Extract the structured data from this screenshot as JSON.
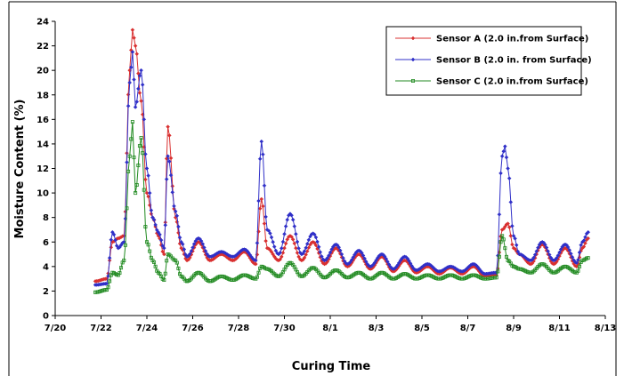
{
  "chart_data": {
    "type": "line",
    "xlabel": "Curing Time",
    "ylabel": "Moisture Content (%)",
    "xlim": [
      "7/20",
      "8/13"
    ],
    "ylim": [
      0,
      24
    ],
    "x_tick_labels": [
      "7/20",
      "7/22",
      "7/24",
      "7/26",
      "7/28",
      "7/30",
      "8/1",
      "8/3",
      "8/5",
      "8/7",
      "8/9",
      "8/11",
      "8/13"
    ],
    "y_ticks": [
      0,
      2,
      4,
      6,
      8,
      10,
      12,
      14,
      16,
      18,
      20,
      22,
      24
    ],
    "grid": false,
    "legend_position": "top-right",
    "series": [
      {
        "name": "Sensor A (2.0 in.from Surface)",
        "color": "#d93030",
        "marker": "diamond",
        "points": [
          [
            "7/21 18:00",
            2.8
          ],
          [
            "7/22 06:00",
            3.0
          ],
          [
            "7/22 12:00",
            6.0
          ],
          [
            "7/22 18:00",
            6.3
          ],
          [
            "7/23 00:00",
            6.5
          ],
          [
            "7/23 06:00",
            20.0
          ],
          [
            "7/23 09:00",
            23.3
          ],
          [
            "7/23 12:00",
            22.0
          ],
          [
            "7/23 18:00",
            17.5
          ],
          [
            "7/24 00:00",
            10.0
          ],
          [
            "7/24 06:00",
            8.0
          ],
          [
            "7/24 12:00",
            6.5
          ],
          [
            "7/24 18:00",
            5.0
          ],
          [
            "7/24 22:00",
            15.4
          ],
          [
            "7/25 06:00",
            8.0
          ],
          [
            "7/25 12:00",
            5.5
          ],
          [
            "7/25 18:00",
            4.5
          ],
          [
            "7/26 06:00",
            6.0
          ],
          [
            "7/26 18:00",
            4.5
          ],
          [
            "7/27 06:00",
            5.0
          ],
          [
            "7/27 18:00",
            4.5
          ],
          [
            "7/28 06:00",
            5.2
          ],
          [
            "7/28 18:00",
            4.2
          ],
          [
            "7/29 00:00",
            9.5
          ],
          [
            "7/29 06:00",
            5.5
          ],
          [
            "7/29 18:00",
            4.5
          ],
          [
            "7/30 06:00",
            6.5
          ],
          [
            "7/30 18:00",
            4.5
          ],
          [
            "7/31 06:00",
            6.0
          ],
          [
            "7/31 18:00",
            4.2
          ],
          [
            "8/1 06:00",
            5.5
          ],
          [
            "8/1 18:00",
            4.0
          ],
          [
            "8/2 06:00",
            5.0
          ],
          [
            "8/2 18:00",
            3.8
          ],
          [
            "8/3 06:00",
            4.8
          ],
          [
            "8/3 18:00",
            3.6
          ],
          [
            "8/4 06:00",
            4.5
          ],
          [
            "8/4 18:00",
            3.5
          ],
          [
            "8/5 06:00",
            4.0
          ],
          [
            "8/5 18:00",
            3.4
          ],
          [
            "8/6 06:00",
            3.9
          ],
          [
            "8/6 18:00",
            3.4
          ],
          [
            "8/7 06:00",
            4.0
          ],
          [
            "8/7 18:00",
            3.2
          ],
          [
            "8/8 06:00",
            3.3
          ],
          [
            "8/8 12:00",
            7.0
          ],
          [
            "8/8 18:00",
            7.5
          ],
          [
            "8/9 00:00",
            5.5
          ],
          [
            "8/9 06:00",
            5.0
          ],
          [
            "8/9 18:00",
            4.2
          ],
          [
            "8/10 06:00",
            5.8
          ],
          [
            "8/10 18:00",
            4.2
          ],
          [
            "8/11 06:00",
            5.5
          ],
          [
            "8/11 18:00",
            4.0
          ],
          [
            "8/12 00:00",
            5.5
          ],
          [
            "8/12 06:00",
            6.3
          ]
        ]
      },
      {
        "name": "Sensor B (2.0 in. from Surface)",
        "color": "#3030c8",
        "marker": "diamond",
        "points": [
          [
            "7/21 18:00",
            2.5
          ],
          [
            "7/22 06:00",
            2.6
          ],
          [
            "7/22 12:00",
            6.8
          ],
          [
            "7/22 18:00",
            5.5
          ],
          [
            "7/23 00:00",
            6.0
          ],
          [
            "7/23 06:00",
            19.0
          ],
          [
            "7/23 09:00",
            21.5
          ],
          [
            "7/23 12:00",
            17.0
          ],
          [
            "7/23 18:00",
            20.0
          ],
          [
            "7/24 00:00",
            12.0
          ],
          [
            "7/24 06:00",
            8.0
          ],
          [
            "7/24 12:00",
            6.8
          ],
          [
            "7/24 18:00",
            5.5
          ],
          [
            "7/24 22:00",
            13.0
          ],
          [
            "7/25 06:00",
            8.5
          ],
          [
            "7/25 12:00",
            6.0
          ],
          [
            "7/25 18:00",
            4.8
          ],
          [
            "7/26 06:00",
            6.3
          ],
          [
            "7/26 18:00",
            4.8
          ],
          [
            "7/27 06:00",
            5.2
          ],
          [
            "7/27 18:00",
            4.8
          ],
          [
            "7/28 06:00",
            5.4
          ],
          [
            "7/28 18:00",
            4.5
          ],
          [
            "7/29 00:00",
            14.2
          ],
          [
            "7/29 06:00",
            7.0
          ],
          [
            "7/29 18:00",
            5.0
          ],
          [
            "7/30 06:00",
            8.3
          ],
          [
            "7/30 18:00",
            5.0
          ],
          [
            "7/31 06:00",
            6.7
          ],
          [
            "7/31 18:00",
            4.5
          ],
          [
            "8/1 06:00",
            5.8
          ],
          [
            "8/1 18:00",
            4.2
          ],
          [
            "8/2 06:00",
            5.3
          ],
          [
            "8/2 18:00",
            4.0
          ],
          [
            "8/3 06:00",
            5.0
          ],
          [
            "8/3 18:00",
            3.8
          ],
          [
            "8/4 06:00",
            4.8
          ],
          [
            "8/4 18:00",
            3.7
          ],
          [
            "8/5 06:00",
            4.2
          ],
          [
            "8/5 18:00",
            3.6
          ],
          [
            "8/6 06:00",
            4.0
          ],
          [
            "8/6 18:00",
            3.6
          ],
          [
            "8/7 06:00",
            4.2
          ],
          [
            "8/7 18:00",
            3.4
          ],
          [
            "8/8 06:00",
            3.5
          ],
          [
            "8/8 12:00",
            13.0
          ],
          [
            "8/8 15:00",
            13.8
          ],
          [
            "8/8 18:00",
            12.0
          ],
          [
            "8/9 00:00",
            6.5
          ],
          [
            "8/9 06:00",
            5.0
          ],
          [
            "8/9 18:00",
            4.5
          ],
          [
            "8/10 06:00",
            6.0
          ],
          [
            "8/10 18:00",
            4.5
          ],
          [
            "8/11 06:00",
            5.8
          ],
          [
            "8/11 18:00",
            4.3
          ],
          [
            "8/12 00:00",
            6.0
          ],
          [
            "8/12 06:00",
            6.8
          ]
        ]
      },
      {
        "name": "Sensor C (2.0 in.from Surface)",
        "color": "#208a20",
        "marker": "square",
        "points": [
          [
            "7/21 18:00",
            1.9
          ],
          [
            "7/22 06:00",
            2.1
          ],
          [
            "7/22 12:00",
            3.5
          ],
          [
            "7/22 18:00",
            3.3
          ],
          [
            "7/23 00:00",
            4.5
          ],
          [
            "7/23 06:00",
            13.0
          ],
          [
            "7/23 09:00",
            15.8
          ],
          [
            "7/23 12:00",
            10.0
          ],
          [
            "7/23 18:00",
            14.5
          ],
          [
            "7/24 00:00",
            6.0
          ],
          [
            "7/24 06:00",
            4.5
          ],
          [
            "7/24 12:00",
            3.5
          ],
          [
            "7/24 18:00",
            2.9
          ],
          [
            "7/24 22:00",
            5.0
          ],
          [
            "7/25 06:00",
            4.5
          ],
          [
            "7/25 12:00",
            3.2
          ],
          [
            "7/25 18:00",
            2.8
          ],
          [
            "7/26 06:00",
            3.5
          ],
          [
            "7/26 18:00",
            2.8
          ],
          [
            "7/27 06:00",
            3.2
          ],
          [
            "7/27 18:00",
            2.9
          ],
          [
            "7/28 06:00",
            3.3
          ],
          [
            "7/28 18:00",
            3.0
          ],
          [
            "7/29 00:00",
            4.0
          ],
          [
            "7/29 06:00",
            3.8
          ],
          [
            "7/29 18:00",
            3.2
          ],
          [
            "7/30 06:00",
            4.3
          ],
          [
            "7/30 18:00",
            3.2
          ],
          [
            "7/31 06:00",
            3.9
          ],
          [
            "7/31 18:00",
            3.1
          ],
          [
            "8/1 06:00",
            3.7
          ],
          [
            "8/1 18:00",
            3.1
          ],
          [
            "8/2 06:00",
            3.5
          ],
          [
            "8/2 18:00",
            3.0
          ],
          [
            "8/3 06:00",
            3.5
          ],
          [
            "8/3 18:00",
            3.0
          ],
          [
            "8/4 06:00",
            3.4
          ],
          [
            "8/4 18:00",
            3.0
          ],
          [
            "8/5 06:00",
            3.3
          ],
          [
            "8/5 18:00",
            3.0
          ],
          [
            "8/6 06:00",
            3.3
          ],
          [
            "8/6 18:00",
            3.0
          ],
          [
            "8/7 06:00",
            3.3
          ],
          [
            "8/7 18:00",
            3.0
          ],
          [
            "8/8 06:00",
            3.1
          ],
          [
            "8/8 12:00",
            6.5
          ],
          [
            "8/8 18:00",
            4.5
          ],
          [
            "8/9 00:00",
            4.0
          ],
          [
            "8/9 06:00",
            3.8
          ],
          [
            "8/9 18:00",
            3.5
          ],
          [
            "8/10 06:00",
            4.2
          ],
          [
            "8/10 18:00",
            3.5
          ],
          [
            "8/11 06:00",
            4.0
          ],
          [
            "8/11 18:00",
            3.5
          ],
          [
            "8/12 00:00",
            4.5
          ],
          [
            "8/12 06:00",
            4.7
          ]
        ]
      }
    ]
  }
}
